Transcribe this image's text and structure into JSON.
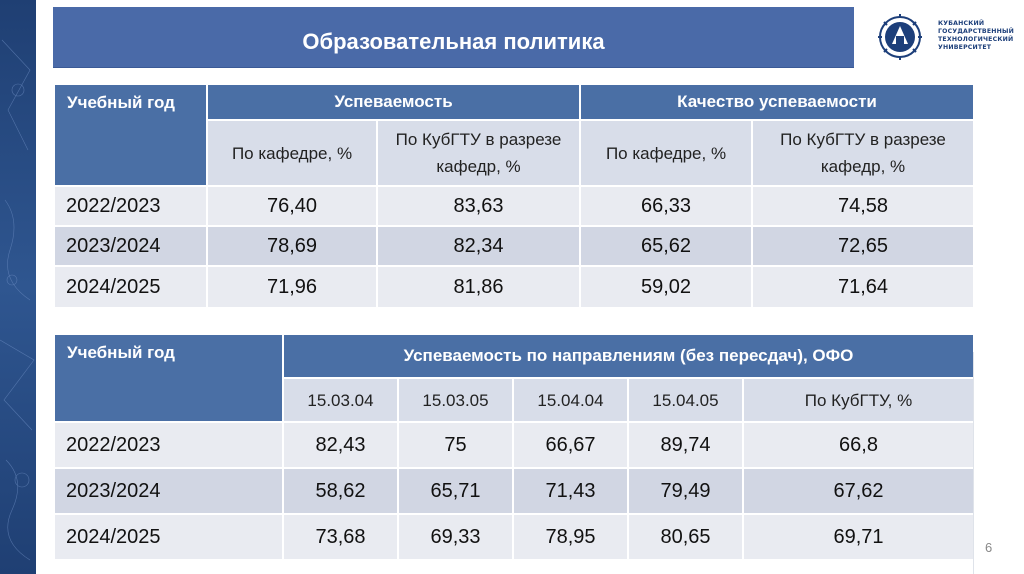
{
  "title": "Образовательная политика",
  "logo": {
    "line1": "КУБАНСКИЙ",
    "line2": "ГОСУДАРСТВЕННЫЙ",
    "line3": "ТЕХНОЛОГИЧЕСКИЙ",
    "line4": "УНИВЕРСИТЕТ"
  },
  "table1": {
    "year_header": "Учебный год",
    "group1": "Успеваемость",
    "group2": "Качество успеваемости",
    "subheaders": [
      "По кафедре, %",
      "По КубГТУ в разрезе кафедр, %",
      "По кафедре, %",
      "По КубГТУ в разрезе кафедр, %"
    ],
    "rows": [
      {
        "year": "2022/2023",
        "values": [
          "76,40",
          "83,63",
          "66,33",
          "74,58"
        ]
      },
      {
        "year": "2023/2024",
        "values": [
          "78,69",
          "82,34",
          "65,62",
          "72,65"
        ]
      },
      {
        "year": "2024/2025",
        "values": [
          "71,96",
          "81,86",
          "59,02",
          "71,64"
        ]
      }
    ]
  },
  "table2": {
    "year_header": "Учебный год",
    "group": "Успеваемость по направлениям (без пересдач), ОФО",
    "subheaders": [
      "15.03.04",
      "15.03.05",
      "15.04.04",
      "15.04.05",
      "По КубГТУ, %"
    ],
    "rows": [
      {
        "year": "2022/2023",
        "values": [
          "82,43",
          "75",
          "66,67",
          "89,74",
          "66,8"
        ]
      },
      {
        "year": "2023/2024",
        "values": [
          "58,62",
          "65,71",
          "71,43",
          "79,49",
          "67,62"
        ]
      },
      {
        "year": "2024/2025",
        "values": [
          "73,68",
          "69,33",
          "78,95",
          "80,65",
          "69,71"
        ]
      }
    ]
  },
  "page_number": "6",
  "colors": {
    "title_bar": "#4a6aa8",
    "header_blue": "#4a6fa5",
    "subheader": "#d8dde9",
    "row_light": "#e9ebf1",
    "row_dark": "#d1d6e3",
    "side_strip": "#2f5690"
  }
}
